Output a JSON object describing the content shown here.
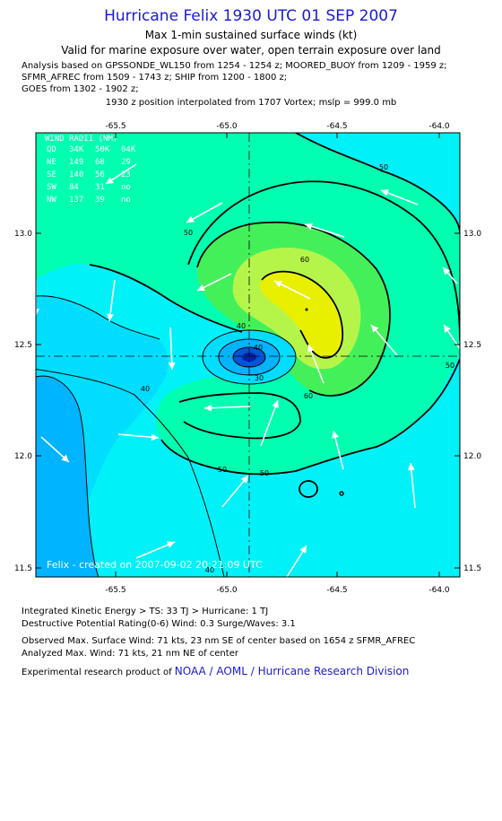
{
  "header": {
    "title": "Hurricane Felix 1930 UTC 01 SEP 2007",
    "subtitle1": "Max 1-min sustained surface winds (kt)",
    "subtitle2": "Valid for marine exposure over water, open terrain exposure over land"
  },
  "analysis_lines": [
    "Analysis based on  GPSSONDE_WL150 from 1254 - 1254 z;  MOORED_BUOY from 1209 - 1959 z;",
    "SFMR_AFREC from 1509 - 1743 z;  SHIP from 1200 - 1800 z;",
    "GOES from 1302 - 1902 z;"
  ],
  "vortex_line": "1930 z position interpolated from 1707 Vortex; mslp = 999.0 mb",
  "map": {
    "lon_ticks": [
      "-65.5",
      "-65.0",
      "-64.5",
      "-64.0"
    ],
    "lat_ticks": [
      "13.0",
      "12.5",
      "12.0",
      "11.5"
    ],
    "contour_labels": [
      "50",
      "50",
      "60",
      "50",
      "50",
      "40",
      "40",
      "40",
      "50",
      "60",
      "30",
      "40"
    ],
    "wind_radii": {
      "header": "WIND RADII (NM)",
      "rows": [
        [
          "QD",
          "34K",
          "50K",
          "64K"
        ],
        [
          "NE",
          "149",
          "68",
          "29"
        ],
        [
          "SE",
          "140",
          "56",
          "23"
        ],
        [
          "SW",
          "84",
          "31",
          "no"
        ],
        [
          "NW",
          "137",
          "39",
          "no"
        ]
      ]
    },
    "stamp": "Felix - created on 2007-09-02 20:21:09 UTC",
    "colors": {
      "c20": "#00b4ff",
      "c30": "#00ddff",
      "c40": "#00f2f8",
      "c50": "#00ffb0",
      "c60": "#44f05a",
      "c70": "#b5f54a",
      "c80": "#e8f000",
      "arrows": "#ffffff",
      "contours": "#000000"
    }
  },
  "footer": {
    "ike": "Integrated Kinetic Energy > TS: 33 TJ   > Hurricane: 1 TJ",
    "dpr": "Destructive Potential Rating(0-6)   Wind: 0.3 Surge/Waves: 3.1",
    "obs": "Observed Max. Surface Wind: 71 kts, 23 nm SE of center based on 1654 z SFMR_AFREC",
    "analyzed": "Analyzed Max. Wind: 71 kts, 21 nm NE of center",
    "product_prefix": "Experimental research product of",
    "product_link": "NOAA / AOML / Hurricane Research Division"
  }
}
